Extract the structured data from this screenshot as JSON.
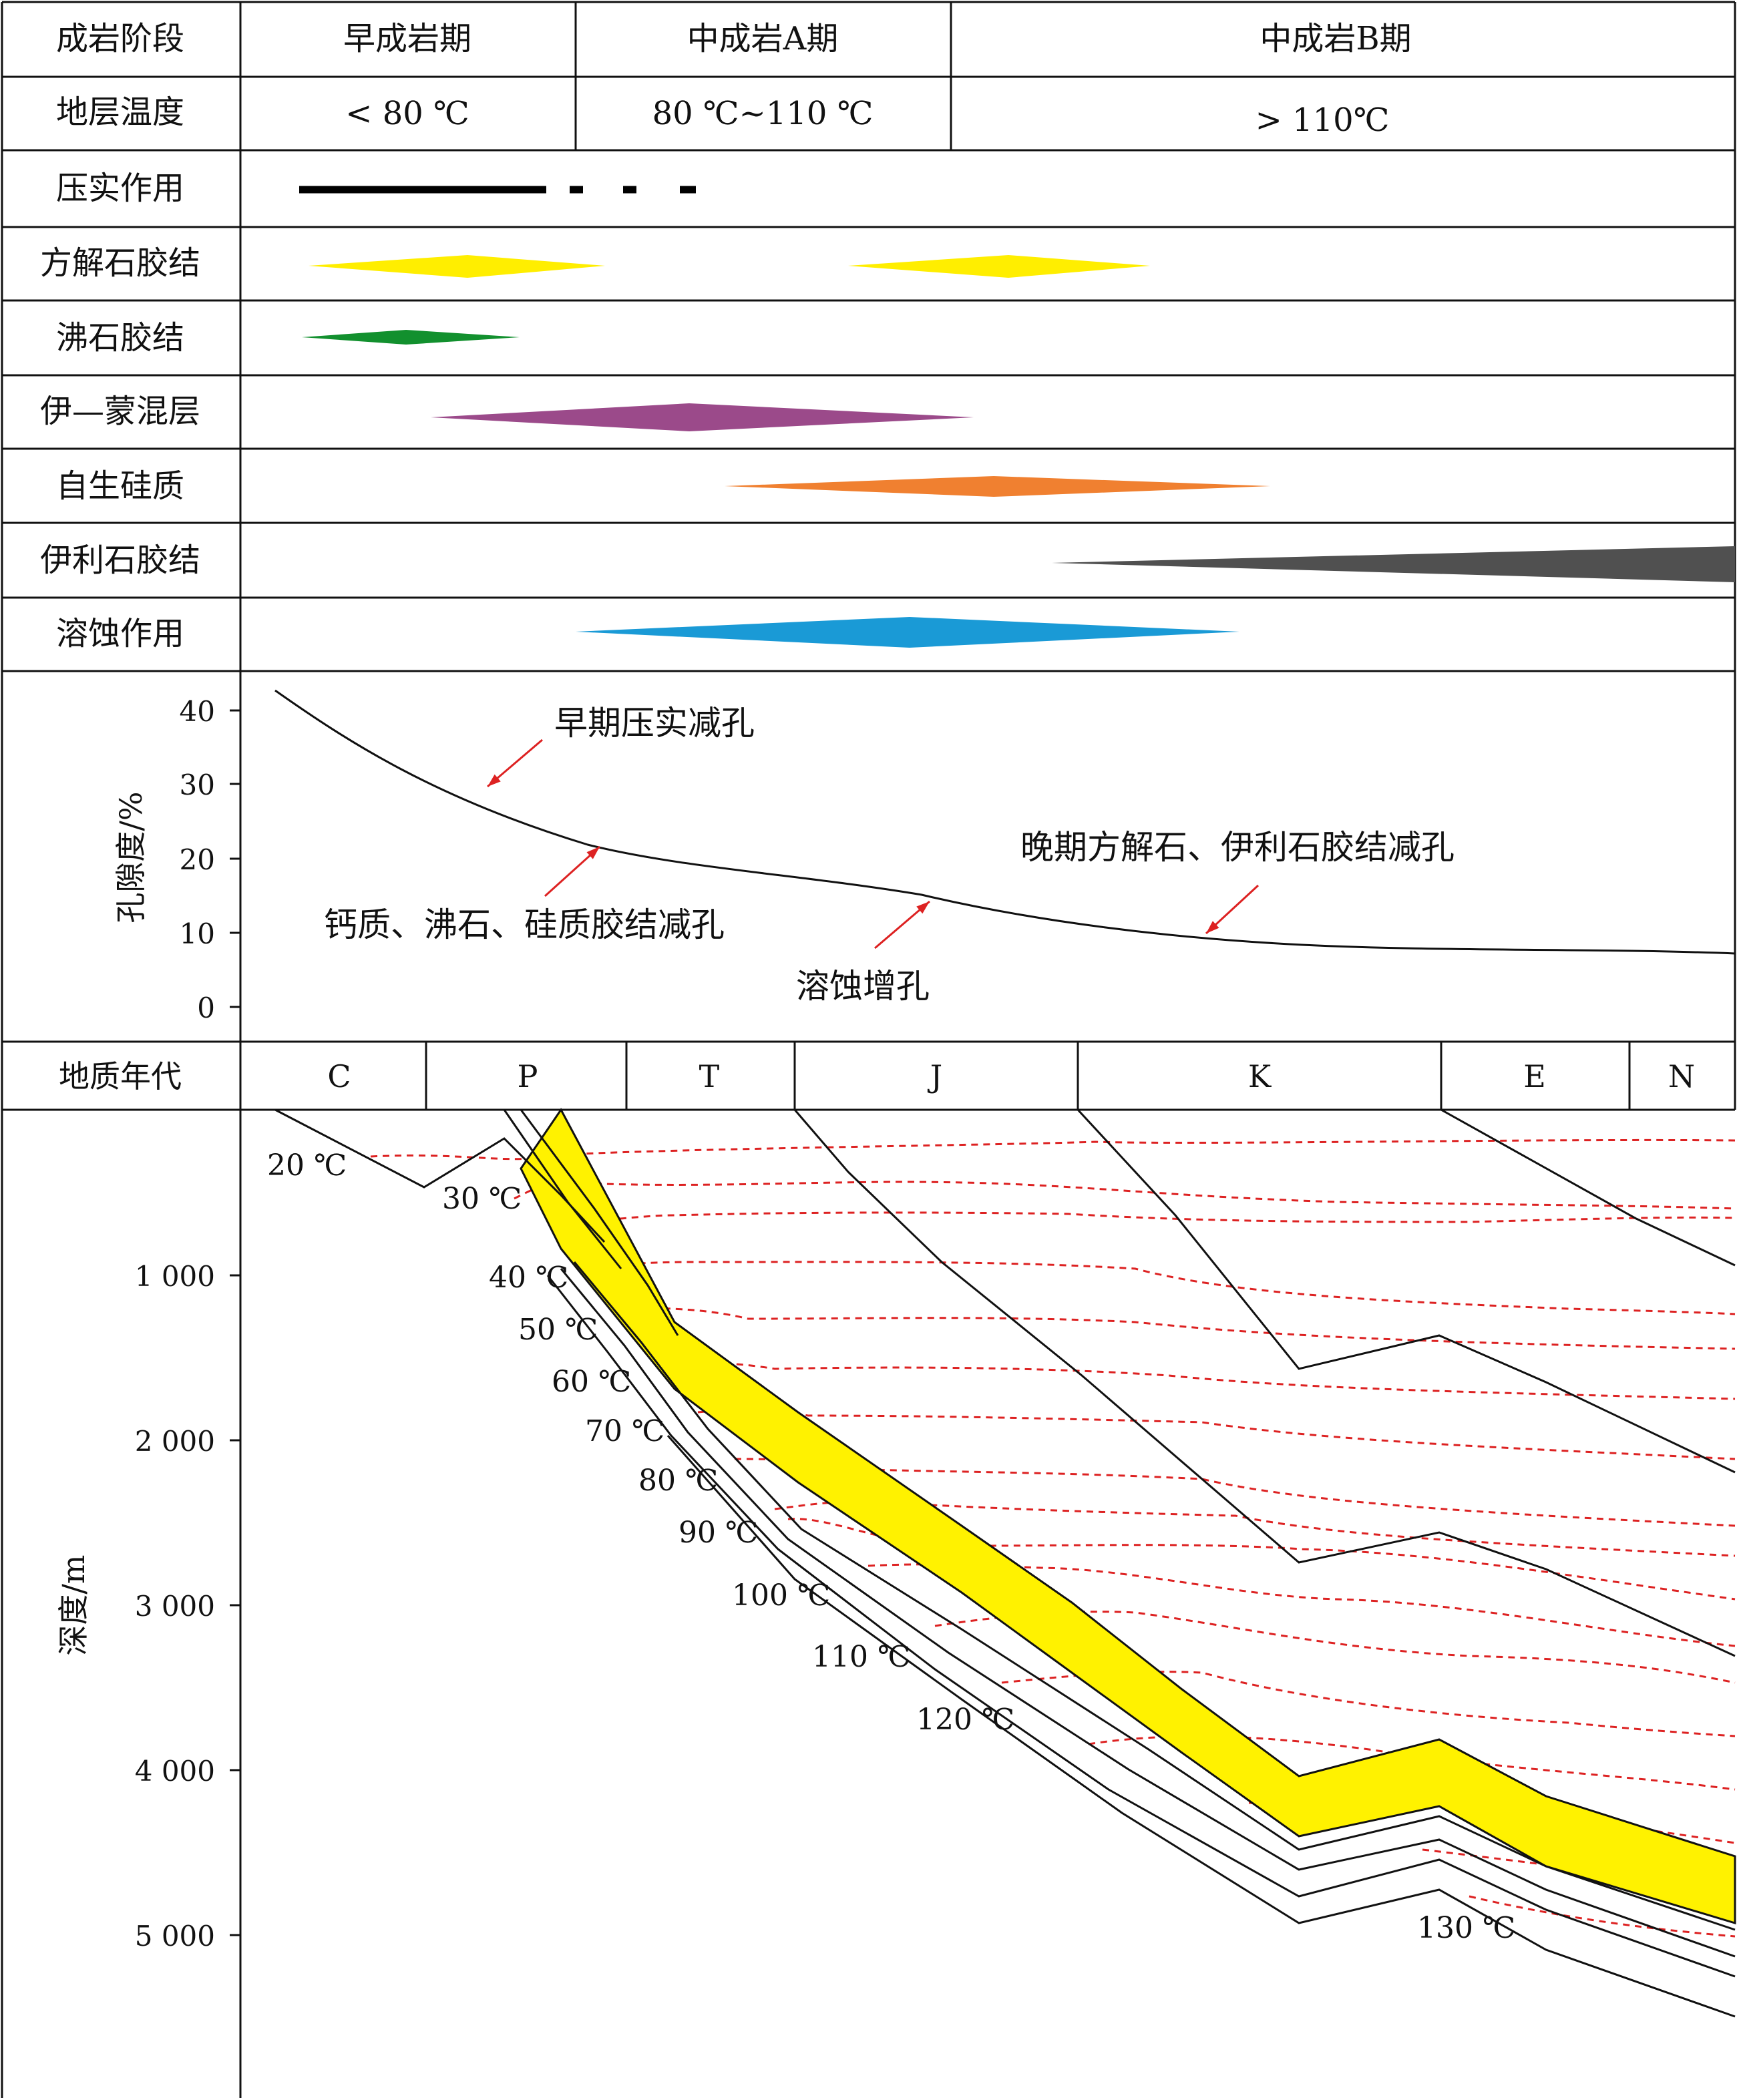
{
  "stage_table": {
    "header_label": "成岩阶段",
    "temp_label": "地层温度",
    "stages": [
      {
        "name": "早成岩期",
        "temp": "< 80 ℃"
      },
      {
        "name": "中成岩A期",
        "temp": "80 ℃~110 ℃"
      },
      {
        "name": "中成岩B期",
        "temp": "> 110℃"
      }
    ]
  },
  "processes": [
    {
      "label": "压实作用",
      "color": "#000000",
      "shape": "line"
    },
    {
      "label": "方解石胶结",
      "color": "#ffee00",
      "shape": "diamond"
    },
    {
      "label": "沸石胶结",
      "color": "#12902e",
      "shape": "diamond"
    },
    {
      "label": "伊—蒙混层",
      "color": "#9b4a8a",
      "shape": "diamond"
    },
    {
      "label": "自生硅质",
      "color": "#f08030",
      "shape": "diamond"
    },
    {
      "label": "伊利石胶结",
      "color": "#505050",
      "shape": "wedge"
    },
    {
      "label": "溶蚀作用",
      "color": "#1a9ad6",
      "shape": "diamond"
    }
  ],
  "porosity": {
    "ylabel": "孔隙度/%",
    "ticks": [
      "40",
      "30",
      "20",
      "10",
      "0"
    ],
    "annotations": [
      "早期压实减孔",
      "钙质、沸石、硅质胶结减孔",
      "溶蚀增孔",
      "晚期方解石、伊利石胶结减孔"
    ],
    "arrow_color": "#dd2222"
  },
  "geologic_age": {
    "label": "地质年代",
    "periods": [
      "C",
      "P",
      "T",
      "J",
      "K",
      "E",
      "N"
    ]
  },
  "burial": {
    "ylabel": "深度/m",
    "ticks": [
      "1 000",
      "2 000",
      "3 000",
      "4 000",
      "5 000"
    ],
    "isotherms": [
      "20 ℃",
      "30 ℃",
      "40 ℃",
      "50 ℃",
      "60 ℃",
      "70 ℃",
      "80 ℃",
      "90 ℃",
      "100 ℃",
      "110 ℃",
      "120 ℃",
      "130 ℃"
    ],
    "reservoir_color": "#fff200",
    "isotherm_color": "#dd2222"
  }
}
